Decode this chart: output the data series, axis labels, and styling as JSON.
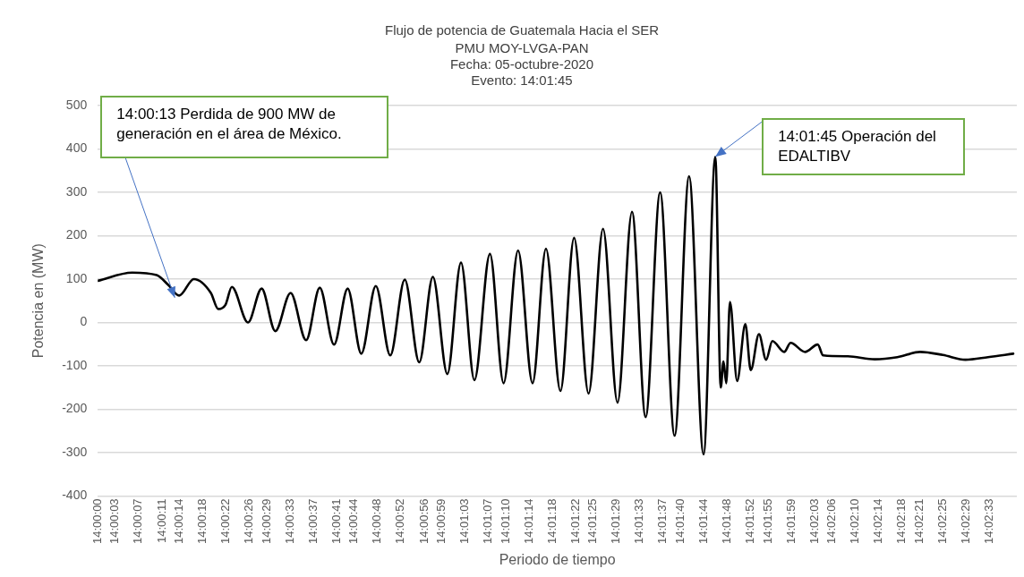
{
  "chart_data": {
    "type": "line",
    "title": "Flujo de potencia de Guatemala Hacia el SER",
    "subtitle": "PMU MOY-LVGA-PAN\nFecha: 05-octubre-2020\nEvento: 14:01:45",
    "xlabel": "Periodo de tiempo",
    "ylabel": "Potencia en (MW)",
    "annotations": [
      {
        "text": "14:00:13 Perdida de 900 MW de generación en el área de México.",
        "x": 14.00367,
        "y": 57
      },
      {
        "text": "14:01:45 Operación del EDALTIBV",
        "x": 14.02943,
        "y": 382
      }
    ],
    "x": [
      14.0,
      14.00164,
      14.00281,
      14.00337,
      14.00388,
      14.00458,
      14.00539,
      14.00574,
      14.00609,
      14.00639,
      14.00716,
      14.00781,
      14.00846,
      14.00919,
      14.00993,
      14.01058,
      14.01126,
      14.01191,
      14.01256,
      14.01325,
      14.01394,
      14.01463,
      14.01532,
      14.01597,
      14.01666,
      14.01731,
      14.01795,
      14.01869,
      14.01934,
      14.02003,
      14.02072,
      14.02136,
      14.02205,
      14.0227,
      14.02339,
      14.02408,
      14.02477,
      14.02546,
      14.02611,
      14.0268,
      14.02749,
      14.02818,
      14.02887,
      14.02943,
      14.02969,
      14.02982,
      14.02995,
      14.03013,
      14.03047,
      14.03086,
      14.03112,
      14.03151,
      14.03185,
      14.03215,
      14.03271,
      14.03302,
      14.03371,
      14.03431,
      14.03457,
      14.03574,
      14.03703,
      14.03811,
      14.03919,
      14.04027,
      14.04135,
      14.04243,
      14.04363
    ],
    "series": [
      {
        "color": "#000000",
        "values": [
          96,
          115,
          109,
          86,
          62,
          100,
          68,
          31,
          41,
          82,
          0,
          78,
          -20,
          68,
          -41,
          80,
          -51,
          78,
          -72,
          84,
          -76,
          99,
          -92,
          105,
          -119,
          138,
          -133,
          158,
          -140,
          166,
          -140,
          170,
          -158,
          195,
          -164,
          216,
          -185,
          255,
          -218,
          300,
          -261,
          337,
          -304,
          382,
          -150,
          -90,
          -140,
          47,
          -135,
          -4,
          -110,
          -27,
          -86,
          -43,
          -68,
          -47,
          -68,
          -51,
          -76,
          -78,
          -85,
          -80,
          -68,
          -75,
          -86,
          -80,
          -72
        ]
      }
    ],
    "xlim": [
      14.0,
      14.0438
    ],
    "xticks": [
      {
        "value": 14.0,
        "label": "14:00:00"
      },
      {
        "value": 14.00083,
        "label": "14:00:03"
      },
      {
        "value": 14.00194,
        "label": "14:00:07"
      },
      {
        "value": 14.00306,
        "label": "14:00:11"
      },
      {
        "value": 14.00389,
        "label": "14:00:14"
      },
      {
        "value": 14.005,
        "label": "14:00:18"
      },
      {
        "value": 14.00611,
        "label": "14:00:22"
      },
      {
        "value": 14.00722,
        "label": "14:00:26"
      },
      {
        "value": 14.00806,
        "label": "14:00:29"
      },
      {
        "value": 14.00917,
        "label": "14:00:33"
      },
      {
        "value": 14.01028,
        "label": "14:00:37"
      },
      {
        "value": 14.01139,
        "label": "14:00:41"
      },
      {
        "value": 14.01222,
        "label": "14:00:44"
      },
      {
        "value": 14.01333,
        "label": "14:00:48"
      },
      {
        "value": 14.01444,
        "label": "14:00:52"
      },
      {
        "value": 14.01556,
        "label": "14:00:56"
      },
      {
        "value": 14.01639,
        "label": "14:00:59"
      },
      {
        "value": 14.0175,
        "label": "14:01:03"
      },
      {
        "value": 14.01861,
        "label": "14:01:07"
      },
      {
        "value": 14.01944,
        "label": "14:01:10"
      },
      {
        "value": 14.02056,
        "label": "14:01:14"
      },
      {
        "value": 14.02167,
        "label": "14:01:18"
      },
      {
        "value": 14.02278,
        "label": "14:01:22"
      },
      {
        "value": 14.02361,
        "label": "14:01:25"
      },
      {
        "value": 14.02472,
        "label": "14:01:29"
      },
      {
        "value": 14.02583,
        "label": "14:01:33"
      },
      {
        "value": 14.02694,
        "label": "14:01:37"
      },
      {
        "value": 14.02778,
        "label": "14:01:40"
      },
      {
        "value": 14.02889,
        "label": "14:01:44"
      },
      {
        "value": 14.03,
        "label": "14:01:48"
      },
      {
        "value": 14.03111,
        "label": "14:01:52"
      },
      {
        "value": 14.03194,
        "label": "14:01:55"
      },
      {
        "value": 14.03306,
        "label": "14:01:59"
      },
      {
        "value": 14.03417,
        "label": "14:02:03"
      },
      {
        "value": 14.035,
        "label": "14:02:06"
      },
      {
        "value": 14.03611,
        "label": "14:02:10"
      },
      {
        "value": 14.03722,
        "label": "14:02:14"
      },
      {
        "value": 14.03833,
        "label": "14:02:18"
      },
      {
        "value": 14.03917,
        "label": "14:02:21"
      },
      {
        "value": 14.04028,
        "label": "14:02:25"
      },
      {
        "value": 14.04139,
        "label": "14:02:29"
      },
      {
        "value": 14.0425,
        "label": "14:02:33"
      }
    ],
    "ylim": [
      -400,
      500
    ],
    "yticks": [
      -400,
      -300,
      -200,
      -100,
      0,
      100,
      200,
      300,
      400,
      500
    ],
    "grid": "y"
  }
}
